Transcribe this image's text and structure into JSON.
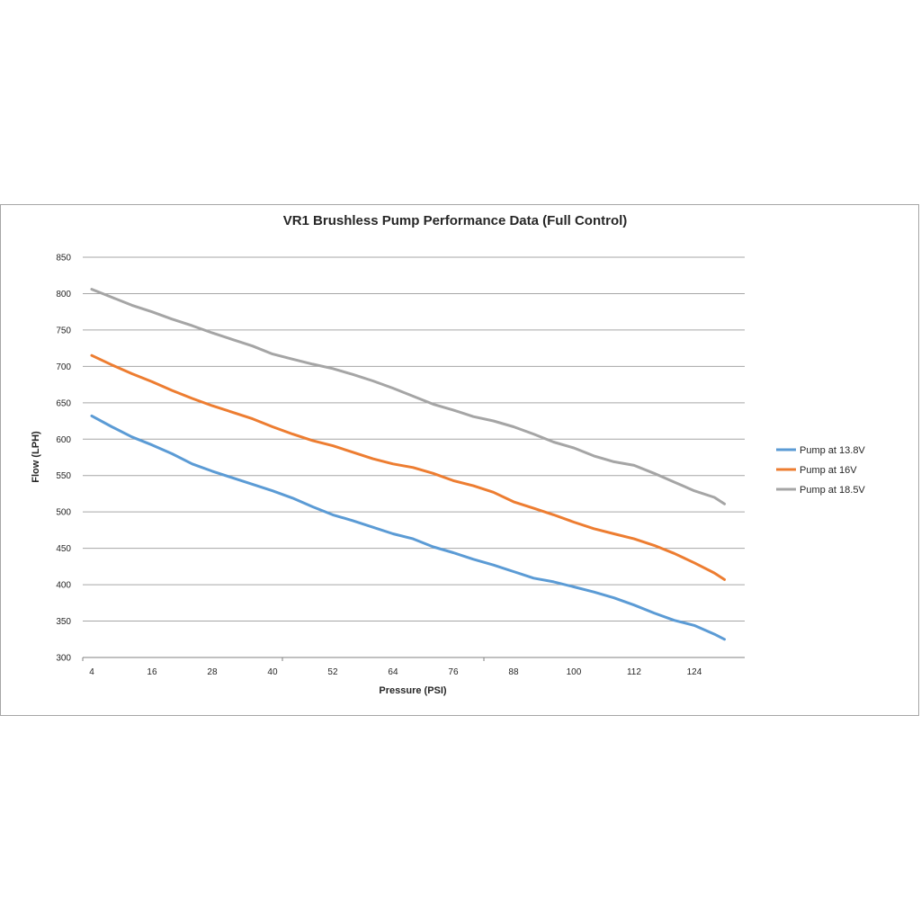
{
  "chart_data": {
    "type": "line",
    "title": "VR1 Brushless Pump Performance Data (Full Control)",
    "xlabel": "Pressure (PSI)",
    "ylabel": "Flow (LPH)",
    "xlim": [
      4,
      130
    ],
    "ylim": [
      300,
      850
    ],
    "x_ticks": [
      4,
      16,
      28,
      40,
      52,
      64,
      76,
      88,
      100,
      112,
      124
    ],
    "y_ticks": [
      300,
      350,
      400,
      450,
      500,
      550,
      600,
      650,
      700,
      750,
      800,
      850
    ],
    "grid": "horizontal",
    "legend_position": "right",
    "x": [
      4,
      8,
      12,
      16,
      20,
      24,
      28,
      32,
      36,
      40,
      44,
      48,
      52,
      56,
      60,
      64,
      68,
      72,
      76,
      80,
      84,
      88,
      92,
      96,
      100,
      104,
      108,
      112,
      116,
      120,
      124,
      128,
      130
    ],
    "series": [
      {
        "name": "Pump at 13.8V",
        "color": "#5b9bd5",
        "values": [
          632,
          617,
          603,
          592,
          580,
          566,
          556,
          547,
          538,
          529,
          519,
          507,
          496,
          488,
          479,
          470,
          463,
          452,
          444,
          435,
          427,
          418,
          409,
          404,
          397,
          390,
          382,
          372,
          361,
          351,
          344,
          332,
          325
        ]
      },
      {
        "name": "Pump at 16V",
        "color": "#ed7d31",
        "values": [
          715,
          702,
          690,
          679,
          667,
          656,
          646,
          637,
          628,
          617,
          607,
          598,
          591,
          582,
          573,
          566,
          561,
          553,
          543,
          536,
          527,
          514,
          505,
          496,
          486,
          477,
          470,
          463,
          454,
          443,
          430,
          416,
          407
        ]
      },
      {
        "name": "Pump at 18.5V",
        "color": "#a5a5a5",
        "values": [
          806,
          795,
          784,
          775,
          765,
          756,
          746,
          737,
          728,
          717,
          710,
          703,
          697,
          689,
          680,
          670,
          659,
          648,
          640,
          631,
          625,
          617,
          607,
          596,
          588,
          577,
          569,
          564,
          553,
          541,
          529,
          520,
          511
        ]
      }
    ]
  }
}
